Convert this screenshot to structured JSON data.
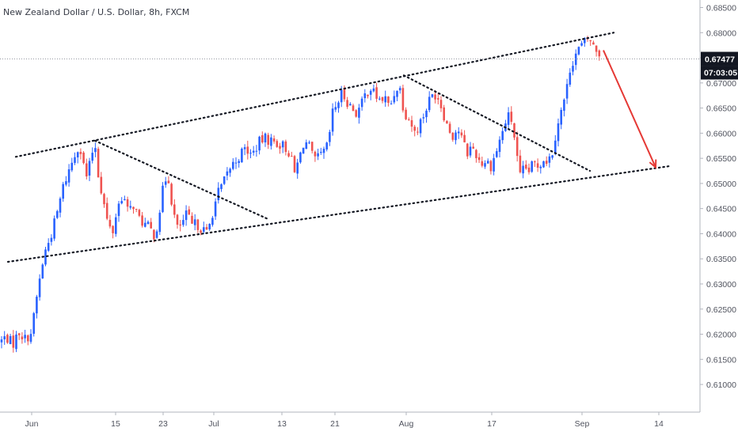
{
  "header": {
    "title": "New Zealand Dollar / U.S. Dollar, 8h, FXCM"
  },
  "price_label": {
    "last_price": "0.67477",
    "countdown": "07:03:05",
    "color": "#131722"
  },
  "colors": {
    "bull": "#2962ff",
    "bear": "#ef5350",
    "trendline": "#131722",
    "arrow": "#e53935",
    "axis_line": "#b2b5be"
  },
  "chart_data": {
    "type": "candlestick",
    "title": "New Zealand Dollar / U.S. Dollar, 8h, FXCM",
    "y_axis": {
      "ticks": [
        "0.68500",
        "0.68000",
        "0.67500",
        "0.67000",
        "0.66500",
        "0.66000",
        "0.65500",
        "0.65000",
        "0.64500",
        "0.64000",
        "0.63500",
        "0.63000",
        "0.62500",
        "0.62000",
        "0.61500",
        "0.61000"
      ],
      "range": [
        0.6045,
        0.6865
      ],
      "position": "right"
    },
    "x_axis": {
      "ticks": [
        "Jun",
        "15",
        "23",
        "Jul",
        "13",
        "21",
        "Aug",
        "17",
        "Sep",
        "14"
      ]
    },
    "close_path": [
      [
        0,
        0.6185
      ],
      [
        8,
        0.6195
      ],
      [
        16,
        0.618
      ],
      [
        24,
        0.6205
      ],
      [
        32,
        0.619
      ],
      [
        40,
        0.6205
      ],
      [
        48,
        0.629
      ],
      [
        56,
        0.636
      ],
      [
        64,
        0.6395
      ],
      [
        72,
        0.644
      ],
      [
        80,
        0.6495
      ],
      [
        88,
        0.653
      ],
      [
        96,
        0.6565
      ],
      [
        100,
        0.658
      ],
      [
        104,
        0.6545
      ],
      [
        110,
        0.651
      ],
      [
        116,
        0.656
      ],
      [
        120,
        0.658
      ],
      [
        124,
        0.652
      ],
      [
        130,
        0.647
      ],
      [
        136,
        0.642
      ],
      [
        142,
        0.64
      ],
      [
        148,
        0.645
      ],
      [
        155,
        0.648
      ],
      [
        162,
        0.644
      ],
      [
        168,
        0.646
      ],
      [
        175,
        0.643
      ],
      [
        182,
        0.642
      ],
      [
        189,
        0.641
      ],
      [
        196,
        0.6395
      ],
      [
        202,
        0.645
      ],
      [
        207,
        0.65
      ],
      [
        212,
        0.652
      ],
      [
        218,
        0.645
      ],
      [
        224,
        0.641
      ],
      [
        230,
        0.642
      ],
      [
        236,
        0.644
      ],
      [
        242,
        0.6415
      ],
      [
        248,
        0.642
      ],
      [
        255,
        0.641
      ],
      [
        262,
        0.64
      ],
      [
        268,
        0.644
      ],
      [
        275,
        0.648
      ],
      [
        282,
        0.65
      ],
      [
        290,
        0.653
      ],
      [
        300,
        0.655
      ],
      [
        310,
        0.657
      ],
      [
        318,
        0.6555
      ],
      [
        326,
        0.658
      ],
      [
        334,
        0.659
      ],
      [
        342,
        0.6585
      ],
      [
        350,
        0.658
      ],
      [
        358,
        0.6575
      ],
      [
        366,
        0.656
      ],
      [
        372,
        0.652
      ],
      [
        378,
        0.655
      ],
      [
        384,
        0.6585
      ],
      [
        390,
        0.6575
      ],
      [
        396,
        0.6545
      ],
      [
        402,
        0.655
      ],
      [
        408,
        0.656
      ],
      [
        414,
        0.6575
      ],
      [
        420,
        0.664
      ],
      [
        426,
        0.666
      ],
      [
        432,
        0.668
      ],
      [
        438,
        0.6665
      ],
      [
        444,
        0.665
      ],
      [
        450,
        0.664
      ],
      [
        456,
        0.6655
      ],
      [
        462,
        0.668
      ],
      [
        468,
        0.669
      ],
      [
        474,
        0.6675
      ],
      [
        480,
        0.6665
      ],
      [
        486,
        0.667
      ],
      [
        492,
        0.665
      ],
      [
        498,
        0.668
      ],
      [
        504,
        0.67
      ],
      [
        508,
        0.666
      ],
      [
        512,
        0.664
      ],
      [
        518,
        0.6625
      ],
      [
        524,
        0.66
      ],
      [
        530,
        0.662
      ],
      [
        536,
        0.664
      ],
      [
        542,
        0.6665
      ],
      [
        548,
        0.668
      ],
      [
        554,
        0.667
      ],
      [
        560,
        0.664
      ],
      [
        566,
        0.661
      ],
      [
        572,
        0.6595
      ],
      [
        578,
        0.661
      ],
      [
        584,
        0.6585
      ],
      [
        590,
        0.656
      ],
      [
        596,
        0.6575
      ],
      [
        602,
        0.6555
      ],
      [
        608,
        0.654
      ],
      [
        614,
        0.6545
      ],
      [
        620,
        0.6535
      ],
      [
        626,
        0.656
      ],
      [
        632,
        0.659
      ],
      [
        638,
        0.662
      ],
      [
        644,
        0.664
      ],
      [
        650,
        0.659
      ],
      [
        656,
        0.651
      ],
      [
        662,
        0.653
      ],
      [
        668,
        0.6525
      ],
      [
        674,
        0.654
      ],
      [
        680,
        0.6535
      ],
      [
        686,
        0.655
      ],
      [
        692,
        0.6545
      ],
      [
        698,
        0.6565
      ],
      [
        704,
        0.662
      ],
      [
        710,
        0.665
      ],
      [
        716,
        0.669
      ],
      [
        720,
        0.673
      ],
      [
        726,
        0.6755
      ],
      [
        732,
        0.677
      ],
      [
        738,
        0.678
      ],
      [
        744,
        0.679
      ],
      [
        750,
        0.677
      ],
      [
        756,
        0.676
      ],
      [
        760,
        0.6755
      ]
    ],
    "drawings": {
      "channel_upper": [
        [
          20,
          0.6553
        ],
        [
          775,
          0.68
        ]
      ],
      "channel_lower": [
        [
          10,
          0.6344
        ],
        [
          848,
          0.6535
        ]
      ],
      "descending_line_1": [
        [
          120,
          0.6585
        ],
        [
          340,
          0.6428
        ]
      ],
      "descending_line_2": [
        [
          510,
          0.6715
        ],
        [
          745,
          0.6525
        ]
      ],
      "forecast_arrow": [
        [
          762,
          0.6765
        ],
        [
          828,
          0.6532
        ]
      ]
    }
  }
}
